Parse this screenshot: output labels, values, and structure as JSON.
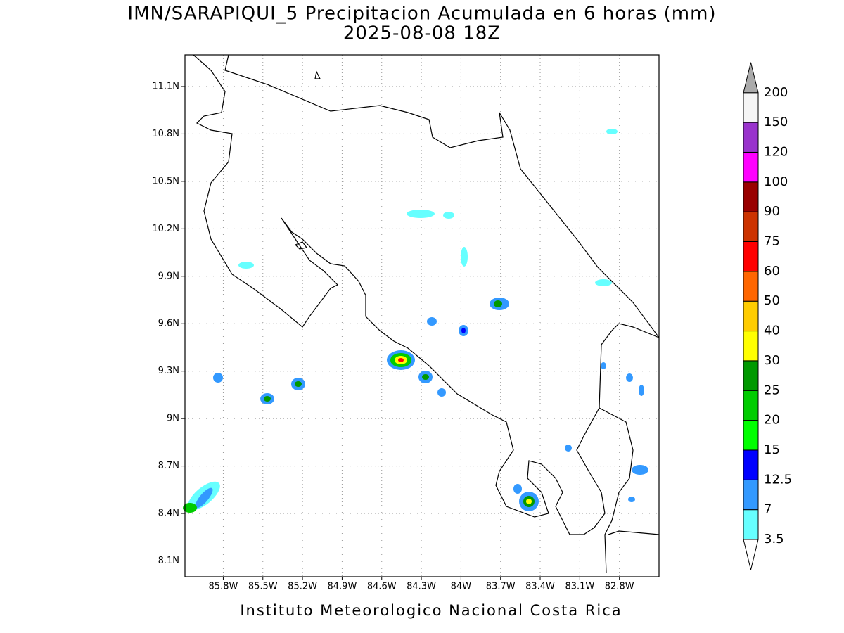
{
  "title": "IMN/SARAPIQUI_5 Precipitacion Acumulada en 6 horas (mm)",
  "subtitle": "2025-08-08 18Z",
  "footer": "Instituto Meteorologico Nacional Costa Rica",
  "map": {
    "xlim": [
      -86.09,
      -82.5
    ],
    "ylim": [
      8.0,
      11.3
    ],
    "grid": true,
    "xticks": [
      {
        "value": -85.8,
        "label": "85.8W"
      },
      {
        "value": -85.5,
        "label": "85.5W"
      },
      {
        "value": -85.2,
        "label": "85.2W"
      },
      {
        "value": -84.9,
        "label": "84.9W"
      },
      {
        "value": -84.6,
        "label": "84.6W"
      },
      {
        "value": -84.3,
        "label": "84.3W"
      },
      {
        "value": -84.0,
        "label": "84W"
      },
      {
        "value": -83.7,
        "label": "83.7W"
      },
      {
        "value": -83.4,
        "label": "83.4W"
      },
      {
        "value": -83.1,
        "label": "83.1W"
      },
      {
        "value": -82.8,
        "label": "82.8W"
      }
    ],
    "yticks": [
      {
        "value": 8.1,
        "label": "8.1N"
      },
      {
        "value": 8.4,
        "label": "8.4N"
      },
      {
        "value": 8.7,
        "label": "8.7N"
      },
      {
        "value": 9.0,
        "label": "9N"
      },
      {
        "value": 9.3,
        "label": "9.3N"
      },
      {
        "value": 9.6,
        "label": "9.6N"
      },
      {
        "value": 9.9,
        "label": "9.9N"
      },
      {
        "value": 10.2,
        "label": "10.2N"
      },
      {
        "value": 10.5,
        "label": "10.5N"
      },
      {
        "value": 10.8,
        "label": "10.8N"
      },
      {
        "value": 11.1,
        "label": "11.1N"
      }
    ]
  },
  "colorbar": {
    "levels": [
      3.5,
      7,
      12.5,
      15,
      20,
      25,
      30,
      40,
      50,
      60,
      75,
      90,
      100,
      120,
      150,
      200
    ],
    "colors": [
      "#ffffff",
      "#66ffff",
      "#3399ff",
      "#0000ff",
      "#00ff00",
      "#00cc00",
      "#009900",
      "#ffff00",
      "#ffcc00",
      "#ff6600",
      "#ff0000",
      "#cc3300",
      "#990000",
      "#ff00ff",
      "#9933cc",
      "#f5f5f5",
      "#aaaaaa"
    ]
  }
}
